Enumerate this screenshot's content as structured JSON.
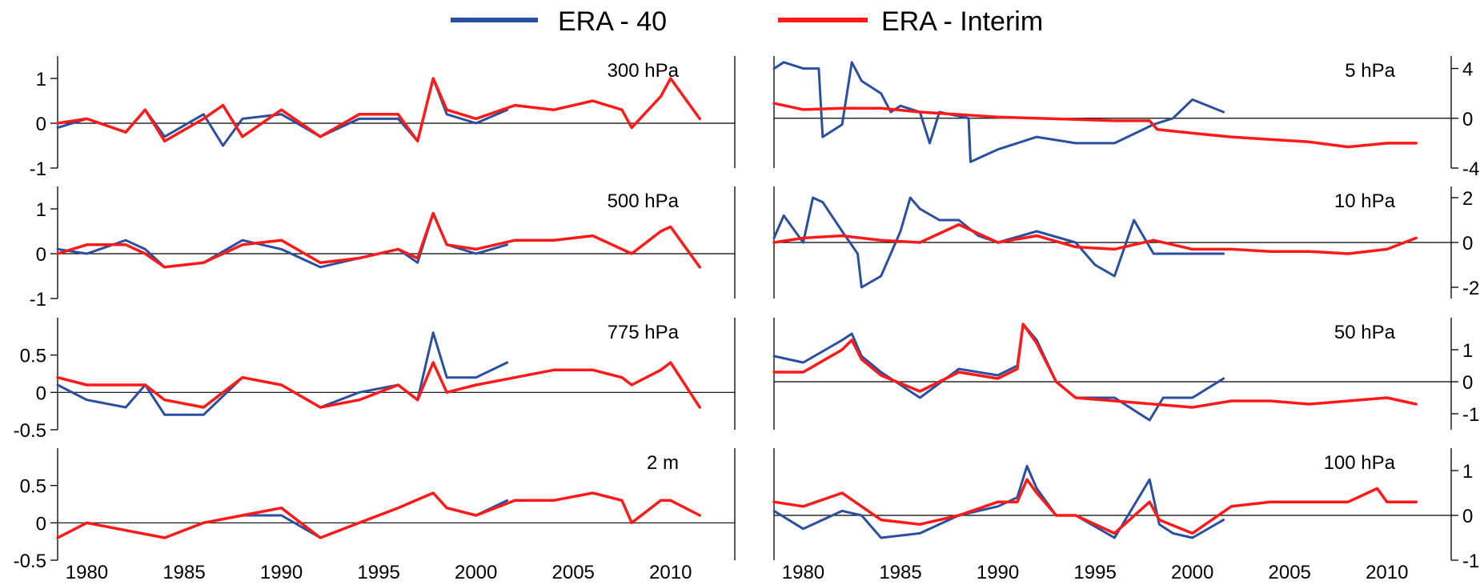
{
  "legend": [
    {
      "label": "ERA - 40",
      "color": "#2a4fa0"
    },
    {
      "label": "ERA - Interim",
      "color": "#ff1a1a"
    }
  ],
  "colors": {
    "era40": "#2a4fa0",
    "erai": "#ff1a1a",
    "axis": "#000000"
  },
  "x_ticks": [
    "1980",
    "1985",
    "1990",
    "1995",
    "2000",
    "2005",
    "2010"
  ],
  "chart_data": [
    {
      "type": "line",
      "title": "300 hPa",
      "column": "left",
      "ylim": [
        -1,
        1.5
      ],
      "yticks": [
        "1",
        "0",
        "-1"
      ],
      "y_axis": "left",
      "series": [
        {
          "name": "ERA - 40",
          "x": [
            1978.5,
            1980,
            1982,
            1983,
            1984,
            1986,
            1987,
            1988,
            1990,
            1992,
            1994,
            1996,
            1997,
            1997.8,
            1998.5,
            2000,
            2001.6
          ],
          "y": [
            -0.1,
            0.1,
            -0.2,
            0.3,
            -0.3,
            0.2,
            -0.5,
            0.1,
            0.2,
            -0.3,
            0.1,
            0.1,
            -0.4,
            1.0,
            0.2,
            0.0,
            0.3
          ]
        },
        {
          "name": "ERA - Interim",
          "x": [
            1978.5,
            1980,
            1982,
            1983,
            1984,
            1986,
            1987,
            1988,
            1990,
            1992,
            1994,
            1996,
            1997,
            1997.8,
            1998.5,
            2000,
            2002,
            2004,
            2006,
            2007.5,
            2008,
            2009.5,
            2010,
            2011.5
          ],
          "y": [
            0.0,
            0.1,
            -0.2,
            0.3,
            -0.4,
            0.1,
            0.4,
            -0.3,
            0.3,
            -0.3,
            0.2,
            0.2,
            -0.4,
            1.0,
            0.3,
            0.1,
            0.4,
            0.3,
            0.5,
            0.3,
            -0.1,
            0.6,
            1.0,
            0.1
          ]
        }
      ]
    },
    {
      "type": "line",
      "title": "500 hPa",
      "column": "left",
      "ylim": [
        -1,
        1.5
      ],
      "yticks": [
        "1",
        "0",
        "-1"
      ],
      "y_axis": "left",
      "series": [
        {
          "name": "ERA - 40",
          "x": [
            1978.5,
            1980,
            1982,
            1983,
            1984,
            1986,
            1988,
            1990,
            1992,
            1994,
            1996,
            1997,
            1997.8,
            1998.5,
            2000,
            2001.6
          ],
          "y": [
            0.1,
            0.0,
            0.3,
            0.1,
            -0.3,
            -0.2,
            0.3,
            0.1,
            -0.3,
            -0.1,
            0.1,
            -0.2,
            0.9,
            0.2,
            0.0,
            0.2
          ]
        },
        {
          "name": "ERA - Interim",
          "x": [
            1978.5,
            1980,
            1982,
            1983,
            1984,
            1986,
            1988,
            1990,
            1992,
            1994,
            1996,
            1997,
            1997.8,
            1998.5,
            2000,
            2002,
            2004,
            2006,
            2007.5,
            2008,
            2009.5,
            2010,
            2011.5
          ],
          "y": [
            0.0,
            0.2,
            0.2,
            0.0,
            -0.3,
            -0.2,
            0.2,
            0.3,
            -0.2,
            -0.1,
            0.1,
            -0.1,
            0.9,
            0.2,
            0.1,
            0.3,
            0.3,
            0.4,
            0.1,
            0.0,
            0.5,
            0.6,
            -0.3
          ]
        }
      ]
    },
    {
      "type": "line",
      "title": "775 hPa",
      "column": "left",
      "ylim": [
        -0.5,
        1.0
      ],
      "yticks": [
        "0.5",
        "0",
        "-0.5"
      ],
      "y_axis": "left",
      "series": [
        {
          "name": "ERA - 40",
          "x": [
            1978.5,
            1980,
            1982,
            1983,
            1984,
            1986,
            1988,
            1990,
            1992,
            1994,
            1996,
            1997,
            1997.8,
            1998.5,
            2000,
            2001.6
          ],
          "y": [
            0.1,
            -0.1,
            -0.2,
            0.1,
            -0.3,
            -0.3,
            0.2,
            0.1,
            -0.2,
            0.0,
            0.1,
            -0.1,
            0.8,
            0.2,
            0.2,
            0.4
          ]
        },
        {
          "name": "ERA - Interim",
          "x": [
            1978.5,
            1980,
            1982,
            1983,
            1984,
            1986,
            1988,
            1990,
            1992,
            1994,
            1996,
            1997,
            1997.8,
            1998.5,
            2000,
            2002,
            2004,
            2006,
            2007.5,
            2008,
            2009.5,
            2010,
            2011.5
          ],
          "y": [
            0.2,
            0.1,
            0.1,
            0.1,
            -0.1,
            -0.2,
            0.2,
            0.1,
            -0.2,
            -0.1,
            0.1,
            -0.1,
            0.4,
            0.0,
            0.1,
            0.2,
            0.3,
            0.3,
            0.2,
            0.1,
            0.3,
            0.4,
            -0.2
          ]
        }
      ]
    },
    {
      "type": "line",
      "title": "2 m",
      "column": "left",
      "ylim": [
        -0.5,
        1.0
      ],
      "yticks": [
        "0.5",
        "0",
        "-0.5"
      ],
      "y_axis": "left",
      "series": [
        {
          "name": "ERA - 40",
          "x": [
            1978.5,
            1980,
            1982,
            1984,
            1986,
            1988,
            1990,
            1992,
            1994,
            1996,
            1997.8,
            1998.5,
            2000,
            2001.6
          ],
          "y": [
            -0.2,
            0.0,
            -0.1,
            -0.2,
            0.0,
            0.1,
            0.1,
            -0.2,
            0.0,
            0.2,
            0.4,
            0.2,
            0.1,
            0.3
          ]
        },
        {
          "name": "ERA - Interim",
          "x": [
            1978.5,
            1980,
            1982,
            1984,
            1986,
            1988,
            1990,
            1992,
            1994,
            1996,
            1997.8,
            1998.5,
            2000,
            2002,
            2004,
            2006,
            2007.5,
            2008,
            2009.5,
            2010,
            2011.5
          ],
          "y": [
            -0.2,
            0.0,
            -0.1,
            -0.2,
            0.0,
            0.1,
            0.2,
            -0.2,
            0.0,
            0.2,
            0.4,
            0.2,
            0.1,
            0.3,
            0.3,
            0.4,
            0.3,
            0.0,
            0.3,
            0.3,
            0.1
          ]
        }
      ]
    },
    {
      "type": "line",
      "title": "5 hPa",
      "column": "right",
      "ylim": [
        -4,
        5
      ],
      "yticks": [
        "4",
        "0",
        "-4"
      ],
      "y_axis": "right",
      "series": [
        {
          "name": "ERA - 40",
          "x": [
            1978.5,
            1979,
            1980,
            1980.8,
            1981,
            1982,
            1982.5,
            1983,
            1984,
            1984.5,
            1985,
            1986,
            1986.5,
            1987,
            1988.5,
            1988.6,
            1990,
            1992,
            1994,
            1996,
            1998,
            1999,
            2000,
            2001.6
          ],
          "y": [
            4.0,
            4.5,
            4.0,
            4.0,
            -1.5,
            -0.5,
            4.5,
            3.0,
            2.0,
            0.5,
            1.0,
            0.5,
            -2.0,
            0.5,
            0.0,
            -3.5,
            -2.5,
            -1.5,
            -2.0,
            -2.0,
            -0.5,
            0.0,
            1.5,
            0.5
          ]
        },
        {
          "name": "ERA - Interim",
          "x": [
            1978.5,
            1980,
            1982,
            1984,
            1986,
            1988,
            1990,
            1992,
            1994,
            1996,
            1997.8,
            1998.2,
            2000,
            2002,
            2004,
            2006,
            2008,
            2010,
            2011.5
          ],
          "y": [
            1.2,
            0.7,
            0.8,
            0.8,
            0.5,
            0.3,
            0.1,
            0.0,
            -0.1,
            -0.2,
            -0.2,
            -0.9,
            -1.2,
            -1.5,
            -1.7,
            -1.9,
            -2.3,
            -2.0,
            -2.0
          ]
        }
      ]
    },
    {
      "type": "line",
      "title": "10 hPa",
      "column": "right",
      "ylim": [
        -2.5,
        2.5
      ],
      "yticks": [
        "2",
        "0",
        "-2"
      ],
      "y_axis": "right",
      "series": [
        {
          "name": "ERA - 40",
          "x": [
            1978.5,
            1979,
            1980,
            1980.5,
            1981,
            1982,
            1982.8,
            1983,
            1984,
            1985,
            1985.5,
            1986,
            1987,
            1988,
            1989,
            1990,
            1992,
            1994,
            1995,
            1996,
            1997,
            1998,
            1999,
            2000,
            2001.6
          ],
          "y": [
            0.2,
            1.2,
            0.0,
            2.0,
            1.8,
            0.5,
            -0.5,
            -2.0,
            -1.5,
            0.5,
            2.0,
            1.5,
            1.0,
            1.0,
            0.3,
            0.0,
            0.5,
            0.0,
            -1.0,
            -1.5,
            1.0,
            -0.5,
            -0.5,
            -0.5,
            -0.5
          ]
        },
        {
          "name": "ERA - Interim",
          "x": [
            1978.5,
            1980,
            1982,
            1984,
            1986,
            1988,
            1990,
            1992,
            1994,
            1996,
            1998,
            2000,
            2002,
            2004,
            2006,
            2008,
            2010,
            2011.5
          ],
          "y": [
            0.0,
            0.2,
            0.3,
            0.1,
            0.0,
            0.8,
            0.0,
            0.3,
            -0.2,
            -0.3,
            0.1,
            -0.3,
            -0.3,
            -0.4,
            -0.4,
            -0.5,
            -0.3,
            0.2
          ]
        }
      ]
    },
    {
      "type": "line",
      "title": "50 hPa",
      "column": "right",
      "ylim": [
        -1.5,
        2.0
      ],
      "yticks": [
        "1",
        "0",
        "-1"
      ],
      "y_axis": "right",
      "series": [
        {
          "name": "ERA - 40",
          "x": [
            1978.5,
            1980,
            1982,
            1982.5,
            1983,
            1984,
            1986,
            1988,
            1989,
            1990,
            1991,
            1991.3,
            1992,
            1993,
            1994,
            1996,
            1997.8,
            1998.5,
            2000,
            2001.6
          ],
          "y": [
            0.8,
            0.6,
            1.3,
            1.5,
            0.8,
            0.3,
            -0.5,
            0.4,
            0.3,
            0.2,
            0.5,
            1.8,
            1.3,
            0.0,
            -0.5,
            -0.5,
            -1.2,
            -0.5,
            -0.5,
            0.1
          ]
        },
        {
          "name": "ERA - Interim",
          "x": [
            1978.5,
            1980,
            1982,
            1982.5,
            1983,
            1984,
            1986,
            1988,
            1989,
            1990,
            1991,
            1991.3,
            1992,
            1993,
            1994,
            1996,
            1998,
            2000,
            2002,
            2004,
            2006,
            2008,
            2010,
            2011.5
          ],
          "y": [
            0.3,
            0.3,
            1.0,
            1.3,
            0.7,
            0.2,
            -0.3,
            0.3,
            0.2,
            0.1,
            0.4,
            1.8,
            1.2,
            0.0,
            -0.5,
            -0.6,
            -0.7,
            -0.8,
            -0.6,
            -0.6,
            -0.7,
            -0.6,
            -0.5,
            -0.7
          ]
        }
      ]
    },
    {
      "type": "line",
      "title": "100 hPa",
      "column": "right",
      "ylim": [
        -1,
        1.5
      ],
      "yticks": [
        "1",
        "0",
        "-1"
      ],
      "y_axis": "right",
      "series": [
        {
          "name": "ERA - 40",
          "x": [
            1978.5,
            1980,
            1982,
            1983,
            1984,
            1986,
            1988,
            1990,
            1991,
            1991.5,
            1992,
            1993,
            1994,
            1996,
            1997.8,
            1998.3,
            1999,
            2000,
            2001.6
          ],
          "y": [
            0.1,
            -0.3,
            0.1,
            0.0,
            -0.5,
            -0.4,
            0.0,
            0.2,
            0.4,
            1.1,
            0.6,
            0.0,
            0.0,
            -0.5,
            0.8,
            -0.2,
            -0.4,
            -0.5,
            -0.1
          ]
        },
        {
          "name": "ERA - Interim",
          "x": [
            1978.5,
            1980,
            1982,
            1983,
            1984,
            1986,
            1988,
            1990,
            1991,
            1991.5,
            1992,
            1993,
            1994,
            1996,
            1997.8,
            1998.3,
            2000,
            2002,
            2004,
            2006,
            2008,
            2009.5,
            2010,
            2011.5
          ],
          "y": [
            0.3,
            0.2,
            0.5,
            0.2,
            -0.1,
            -0.2,
            0.0,
            0.3,
            0.3,
            0.8,
            0.5,
            0.0,
            0.0,
            -0.4,
            0.3,
            -0.1,
            -0.4,
            0.2,
            0.3,
            0.3,
            0.3,
            0.6,
            0.3,
            0.3
          ]
        }
      ]
    }
  ]
}
